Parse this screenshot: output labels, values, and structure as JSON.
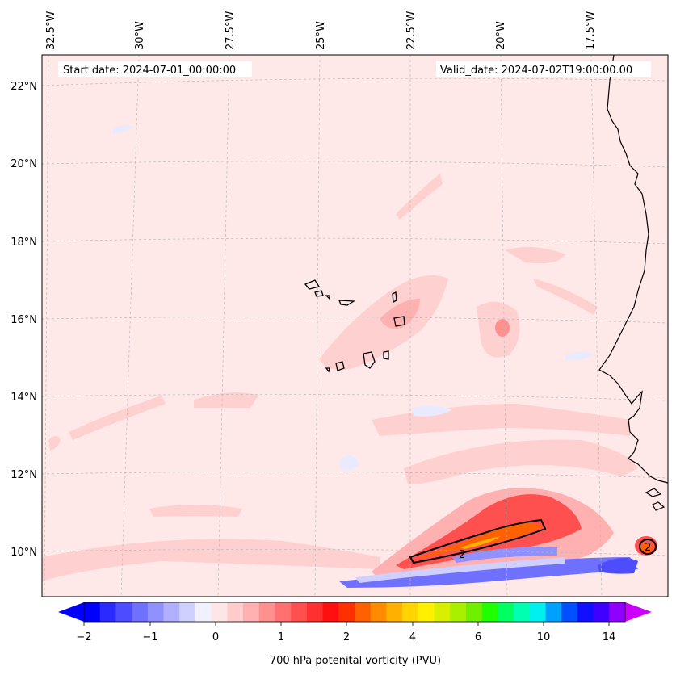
{
  "header": {
    "start_date": "Start date: 2024-07-01_00:00:00",
    "valid_date": "Valid_date: 2024-07-02T19:00:00.00"
  },
  "longitude_labels": [
    "32.5°W",
    "30°W",
    "27.5°W",
    "25°W",
    "22.5°W",
    "20°W",
    "17.5°W"
  ],
  "latitude_labels": [
    "22°N",
    "20°N",
    "18°N",
    "16°N",
    "14°N",
    "12°N",
    "10°N"
  ],
  "contour_label": "2",
  "colorbar": {
    "label": "700 hPa potenital vorticity (PVU)",
    "tick_labels": [
      "−2",
      "−1",
      "0",
      "1",
      "2",
      "4",
      "6",
      "10",
      "14"
    ],
    "colors": [
      "#0000ff",
      "#2a2aff",
      "#4d4dff",
      "#7070ff",
      "#9090ff",
      "#b0b0ff",
      "#d0d0ff",
      "#f0f0ff",
      "#ffe6e6",
      "#ffcccc",
      "#ffb0b0",
      "#ff9090",
      "#ff7070",
      "#ff5050",
      "#ff3030",
      "#ff1010",
      "#ff3000",
      "#ff6000",
      "#ff8c00",
      "#ffb000",
      "#ffd400",
      "#fff000",
      "#d8f000",
      "#a8f000",
      "#70f000",
      "#20ff00",
      "#00ff60",
      "#00ffb0",
      "#00f0f0",
      "#00a0ff",
      "#0050ff",
      "#1010ff",
      "#4000ff",
      "#9000ff"
    ],
    "extend_min_color": "#0000ff",
    "extend_max_color": "#cc00ff"
  },
  "colors": {
    "background_field": "#ffe8e8",
    "coastline": "#000000",
    "gridline": "#bbbbbb"
  }
}
